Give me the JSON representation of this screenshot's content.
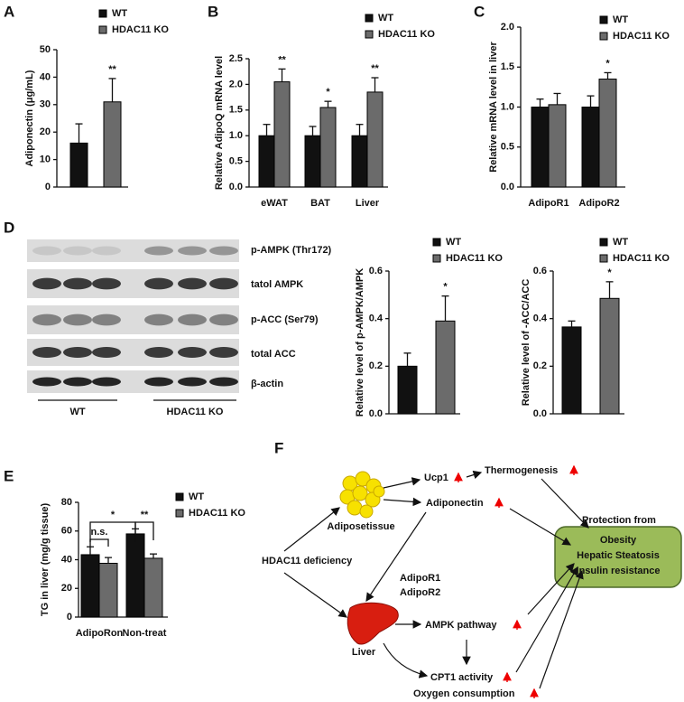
{
  "panel_labels": [
    "A",
    "B",
    "C",
    "D",
    "E",
    "F"
  ],
  "chart_data": [
    {
      "type": "bar",
      "ylabel": "Adiponectin (μg/mL)",
      "categories": [
        null
      ],
      "series": [
        {
          "name": "WT",
          "color": "#111111",
          "values": [
            16
          ],
          "errors": [
            7
          ]
        },
        {
          "name": "HDAC11 KO",
          "color": "#6b6b6b",
          "values": [
            31
          ],
          "errors": [
            8.5
          ]
        }
      ],
      "significance": [
        "**"
      ],
      "ylim": [
        0,
        50
      ],
      "yticks": [
        0,
        10,
        20,
        30,
        40,
        50
      ]
    },
    {
      "type": "bar",
      "ylabel": "Relative AdipoQ mRNA level",
      "categories": [
        "eWAT",
        "BAT",
        "Liver"
      ],
      "series": [
        {
          "name": "WT",
          "color": "#111111",
          "values": [
            1,
            1,
            1
          ],
          "errors": [
            0.22,
            0.18,
            0.22
          ]
        },
        {
          "name": "HDAC11 KO",
          "color": "#6b6b6b",
          "values": [
            2.05,
            1.55,
            1.85
          ],
          "errors": [
            0.25,
            0.12,
            0.28
          ]
        }
      ],
      "significance": [
        "**",
        "*",
        "**"
      ],
      "ylim": [
        0,
        2.5
      ],
      "yticks": [
        {
          "value": 0,
          "label": "0.0"
        },
        0.5,
        {
          "value": 1,
          "label": "1.0"
        },
        1.5,
        {
          "value": 2,
          "label": "2.0"
        },
        2.5
      ]
    },
    {
      "type": "bar",
      "ylabel": "Relative mRNA level in liver",
      "categories": [
        "AdipoR1",
        "AdipoR2"
      ],
      "series": [
        {
          "name": "WT",
          "color": "#111111",
          "values": [
            1,
            1
          ],
          "errors": [
            0.1,
            0.14
          ]
        },
        {
          "name": "HDAC11 KO",
          "color": "#6b6b6b",
          "values": [
            1.03,
            1.35
          ],
          "errors": [
            0.14,
            0.08
          ]
        }
      ],
      "significance": [
        null,
        "*"
      ],
      "ylim": [
        0,
        2
      ],
      "yticks": [
        {
          "value": 0,
          "label": "0.0"
        },
        0.5,
        {
          "value": 1,
          "label": "1.0"
        },
        1.5,
        {
          "value": 2,
          "label": "2.0"
        }
      ]
    },
    {
      "type": "bar",
      "ylabel": "Relative level of p-AMPK/AMPK",
      "categories": [
        null
      ],
      "series": [
        {
          "name": "WT",
          "color": "#111111",
          "values": [
            0.2
          ],
          "errors": [
            0.055
          ]
        },
        {
          "name": "HDAC11 KO",
          "color": "#6b6b6b",
          "values": [
            0.39
          ],
          "errors": [
            0.105
          ]
        }
      ],
      "significance": [
        "*"
      ],
      "ylim": [
        0,
        0.6
      ],
      "yticks": [
        {
          "value": 0,
          "label": "0.0"
        },
        0.2,
        0.4,
        0.6
      ]
    },
    {
      "type": "bar",
      "ylabel": "Relative level of -ACC/ACC",
      "categories": [
        null
      ],
      "series": [
        {
          "name": "WT",
          "color": "#111111",
          "values": [
            0.365
          ],
          "errors": [
            0.025
          ]
        },
        {
          "name": "HDAC11 KO",
          "color": "#6b6b6b",
          "values": [
            0.485
          ],
          "errors": [
            0.07
          ]
        }
      ],
      "significance": [
        "*"
      ],
      "ylim": [
        0,
        0.6
      ],
      "yticks": [
        {
          "value": 0,
          "label": "0.0"
        },
        0.2,
        0.4,
        0.6
      ]
    },
    {
      "type": "bar",
      "ylabel": "TG in liver (mg/g tissue)",
      "categories": [
        "AdipoRon",
        "Non-treat"
      ],
      "series": [
        {
          "name": "WT",
          "color": "#111111",
          "values": [
            43.5,
            58
          ],
          "errors": [
            5.5,
            3.5
          ]
        },
        {
          "name": "HDAC11 KO",
          "color": "#6b6b6b",
          "values": [
            37.5,
            41
          ],
          "errors": [
            4,
            3
          ]
        }
      ],
      "comparisons": [
        "n.s.",
        "*",
        "**"
      ],
      "ylim": [
        0,
        80
      ],
      "yticks": [
        0,
        20,
        40,
        60,
        80
      ]
    }
  ],
  "blot": {
    "rows": [
      "p-AMPK (Thr172)",
      "tatol AMPK",
      "p-ACC (Ser79)",
      "total ACC",
      "β-actin"
    ],
    "groups": [
      "WT",
      "HDAC11 KO"
    ]
  },
  "diagram": {
    "adipose": "Adiposetissue",
    "ucp1": "Ucp1",
    "thermogenesis": "Thermogenesis",
    "adiponectin": "Adiponectin",
    "deficiency": "HDAC11 deficiency",
    "receptor1": "AdipoR1",
    "receptor2": "AdipoR2",
    "liver": "Liver",
    "ampk": "AMPK pathway",
    "cpt1": "CPT1 activity",
    "oxygen": "Oxygen consumption",
    "protection": "Protection from",
    "outcomes": [
      "Obesity",
      "Hepatic Steatosis",
      "Insulin resistance"
    ]
  }
}
